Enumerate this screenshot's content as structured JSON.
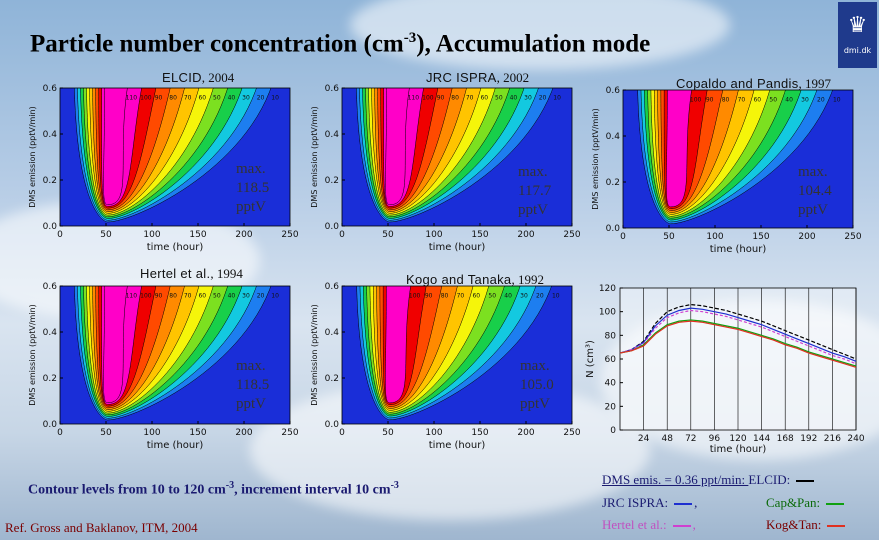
{
  "title": "Particle number concentration (cm-3), Accumulation mode",
  "title_main": "Particle number concentration (cm",
  "title_sup": "-3",
  "title_end": "), Accumulation mode",
  "logo_text": "dmi.dk",
  "chart_data": [
    {
      "type": "heatmap",
      "label": "ELCID",
      "year": ", 2004",
      "max_label": "max.",
      "max_value": "118.5",
      "max_unit": "pptV",
      "xlabel": "time (hour)",
      "ylabel": "DMS emission (pptV/min)",
      "xlim": [
        0,
        250
      ],
      "ylim": [
        0,
        0.6
      ],
      "xticks": [
        "0",
        "50",
        "100",
        "150",
        "200",
        "250"
      ],
      "yticks": [
        "0.0",
        "0.2",
        "0.4",
        "0.6"
      ],
      "contour_labels": [
        "10",
        "20",
        "30",
        "40",
        "50",
        "60",
        "70",
        "80",
        "90",
        "100",
        "110"
      ]
    },
    {
      "type": "heatmap",
      "label": "JRC ISPRA",
      "year": ", 2002",
      "max_label": "max.",
      "max_value": "117.7",
      "max_unit": "pptV",
      "xlabel": "time (hour)",
      "ylabel": "DMS emission (pptV/min)",
      "xlim": [
        0,
        250
      ],
      "ylim": [
        0,
        0.6
      ],
      "xticks": [
        "0",
        "50",
        "100",
        "150",
        "200",
        "250"
      ],
      "yticks": [
        "0.0",
        "0.2",
        "0.4",
        "0.6"
      ],
      "contour_labels": [
        "10",
        "20",
        "30",
        "40",
        "50",
        "60",
        "70",
        "80",
        "90",
        "100",
        "110"
      ]
    },
    {
      "type": "heatmap",
      "label": "Copaldo and Pandis",
      "year": ", 1997",
      "max_label": "max.",
      "max_value": "104.4",
      "max_unit": "pptV",
      "xlabel": "time (hour)",
      "ylabel": "DMS emission (pptV/min)",
      "xlim": [
        0,
        250
      ],
      "ylim": [
        0,
        0.6
      ],
      "xticks": [
        "0",
        "50",
        "100",
        "150",
        "200",
        "250"
      ],
      "yticks": [
        "0.0",
        "0.2",
        "0.4",
        "0.6"
      ],
      "contour_labels": [
        "10",
        "20",
        "30",
        "40",
        "50",
        "60",
        "70",
        "80",
        "90",
        "100"
      ]
    },
    {
      "type": "heatmap",
      "label": "Hertel et al.",
      "year": ", 1994",
      "max_label": "max.",
      "max_value": "118.5",
      "max_unit": "pptV",
      "xlabel": "time (hour)",
      "ylabel": "DMS emission (pptV/min)",
      "xlim": [
        0,
        250
      ],
      "ylim": [
        0,
        0.6
      ],
      "xticks": [
        "0",
        "50",
        "100",
        "150",
        "200",
        "250"
      ],
      "yticks": [
        "0.0",
        "0.2",
        "0.4",
        "0.6"
      ],
      "contour_labels": [
        "10",
        "20",
        "30",
        "40",
        "50",
        "60",
        "70",
        "80",
        "90",
        "100",
        "110"
      ]
    },
    {
      "type": "heatmap",
      "label": "Kogo and Tanaka",
      "year": ", 1992",
      "max_label": "max.",
      "max_value": "105.0",
      "max_unit": "pptV",
      "xlabel": "time (hour)",
      "ylabel": "DMS emission (pptV/min)",
      "xlim": [
        0,
        250
      ],
      "ylim": [
        0,
        0.6
      ],
      "xticks": [
        "0",
        "50",
        "100",
        "150",
        "200",
        "250"
      ],
      "yticks": [
        "0.0",
        "0.2",
        "0.4",
        "0.6"
      ],
      "contour_labels": [
        "10",
        "20",
        "30",
        "40",
        "50",
        "60",
        "70",
        "80",
        "90",
        "100"
      ]
    },
    {
      "type": "line",
      "xlabel": "time (hour)",
      "ylabel": "N (cm³)",
      "xlim": [
        0,
        240
      ],
      "ylim": [
        0,
        120
      ],
      "xticks": [
        "24",
        "48",
        "72",
        "96",
        "120",
        "144",
        "168",
        "192",
        "216",
        "240"
      ],
      "yticks": [
        "0",
        "20",
        "40",
        "60",
        "80",
        "100",
        "120"
      ],
      "x": [
        0,
        12,
        24,
        36,
        48,
        60,
        72,
        84,
        96,
        108,
        120,
        132,
        144,
        156,
        168,
        180,
        192,
        204,
        216,
        228,
        240
      ],
      "series": [
        {
          "name": "ELCID",
          "color": "#000000",
          "dash": "4,2",
          "values": [
            65,
            68,
            75,
            90,
            100,
            104,
            106,
            105,
            103,
            101,
            98,
            95,
            92,
            88,
            84,
            80,
            76,
            72,
            68,
            64,
            60
          ]
        },
        {
          "name": "JRC ISPRA",
          "color": "#1e2fd0",
          "dash": "none",
          "values": [
            65,
            68,
            74,
            88,
            97,
            101,
            103,
            102,
            100,
            98,
            95,
            92,
            89,
            85,
            81,
            77,
            73,
            69,
            65,
            62,
            58
          ]
        },
        {
          "name": "Hertel et al.",
          "color": "#d040d0",
          "dash": "3,2",
          "values": [
            65,
            68,
            73,
            86,
            95,
            99,
            101,
            100,
            98,
            96,
            93,
            90,
            87,
            83,
            79,
            75,
            71,
            67,
            63,
            60,
            56
          ]
        },
        {
          "name": "Cap&Pan",
          "color": "#10a010",
          "dash": "none",
          "values": [
            65,
            67,
            72,
            82,
            89,
            92,
            93,
            92,
            90,
            88,
            86,
            83,
            80,
            77,
            73,
            70,
            66,
            63,
            60,
            57,
            54
          ]
        },
        {
          "name": "Kog&Tan",
          "color": "#e03020",
          "dash": "none",
          "values": [
            65,
            67,
            71,
            81,
            88,
            91,
            92,
            91,
            89,
            87,
            85,
            82,
            79,
            76,
            72,
            69,
            65,
            62,
            59,
            56,
            53
          ]
        }
      ]
    }
  ],
  "contour_colors": [
    "#1a2ed8",
    "#1d7ef0",
    "#13c9e0",
    "#18cf4a",
    "#7ce020",
    "#f5f50a",
    "#ffc400",
    "#ff8a00",
    "#ff4a00",
    "#f00000",
    "#ff00c8"
  ],
  "footnote_text": "Contour levels from 10 to 120 cm",
  "footnote_sup": "-3",
  "footnote_text2": ", increment interval 10 cm",
  "footnote_sup2": "-3",
  "reference": "Ref. Gross and Baklanov, ITM, 2004",
  "legend": {
    "line1": "DMS emis. = 0.36 ppt/min: ",
    "elcid": "ELCID:",
    "jrc": "JRC ISPRA:",
    "jrc_sep": ",",
    "cap": "Cap&Pan:",
    "hertel": "Hertel et al.:",
    "hertel_sep": ",",
    "kog": "Kog&Tan:"
  }
}
